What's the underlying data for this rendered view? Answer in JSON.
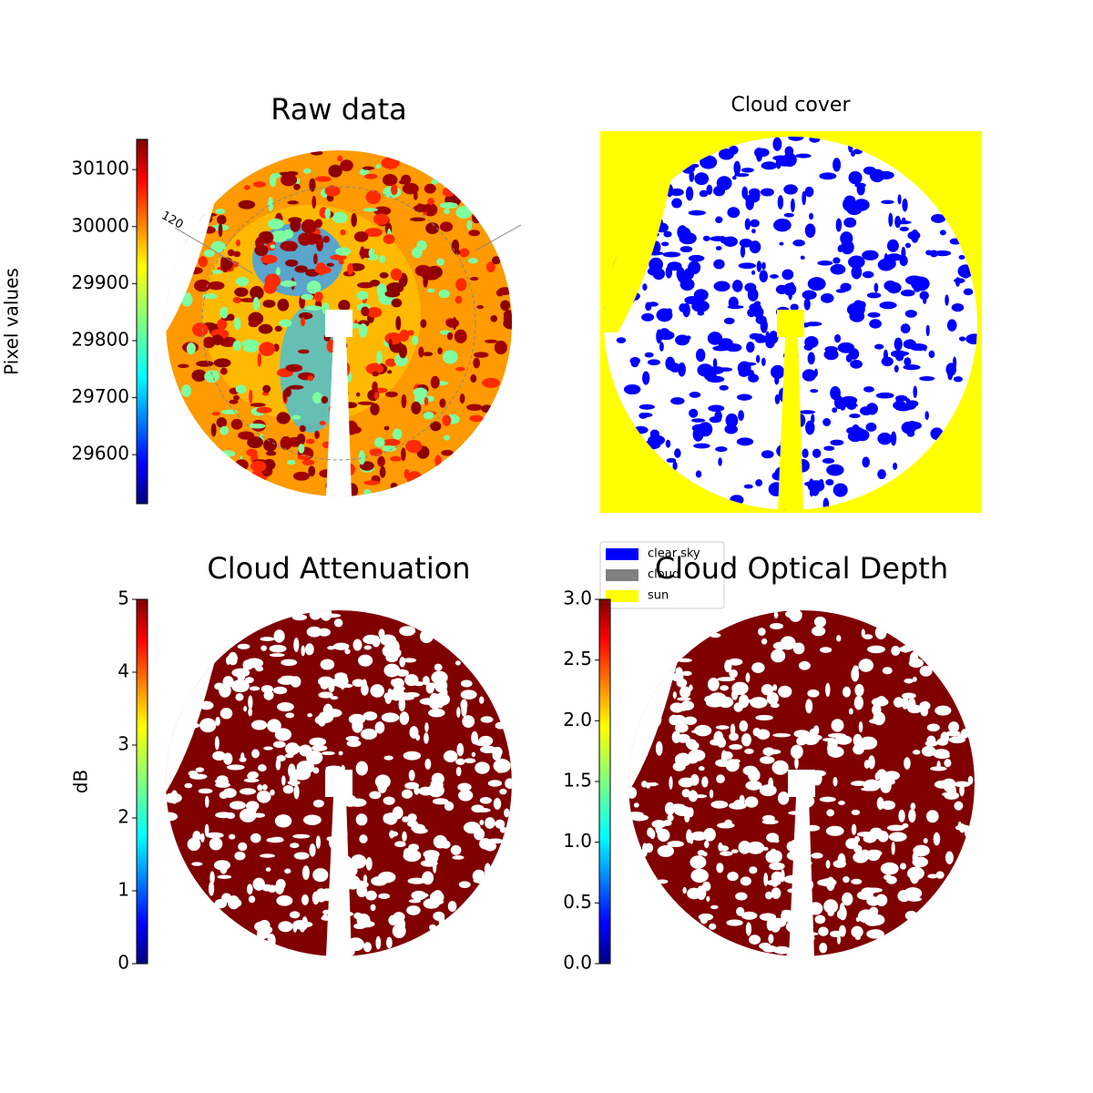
{
  "chart_data": [
    {
      "type": "image",
      "title": "Raw data",
      "colormap": "jet",
      "colorbar": {
        "label": "Pixel values",
        "lim": [
          29514,
          30153
        ],
        "ticks": [
          29600,
          29700,
          29800,
          29900,
          30000,
          30100
        ]
      },
      "annotation": "120"
    },
    {
      "type": "classified-image",
      "title": "Cloud cover",
      "legend": [
        {
          "name": "clear sky",
          "color": "#0000ff"
        },
        {
          "name": "cloud",
          "color": "#808080"
        },
        {
          "name": "sun",
          "color": "#ffff00"
        }
      ]
    },
    {
      "type": "image",
      "title": "Cloud Attenuation",
      "colormap": "jet",
      "colorbar": {
        "label": "dB",
        "lim": [
          0,
          5
        ],
        "ticks": [
          0,
          1,
          2,
          3,
          4,
          5
        ]
      }
    },
    {
      "type": "image",
      "title": "Cloud Optical Depth",
      "colormap": "jet",
      "colorbar": {
        "lim": [
          0,
          3
        ],
        "ticks": [
          {
            "value": 0,
            "label": "0.0"
          },
          {
            "value": 0.5,
            "label": "0.5"
          },
          {
            "value": 1,
            "label": "1.0"
          },
          {
            "value": 1.5,
            "label": "1.5"
          },
          {
            "value": 2,
            "label": "2.0"
          },
          {
            "value": 2.5,
            "label": "2.5"
          },
          {
            "value": 3,
            "label": "3.0"
          }
        ]
      }
    }
  ]
}
